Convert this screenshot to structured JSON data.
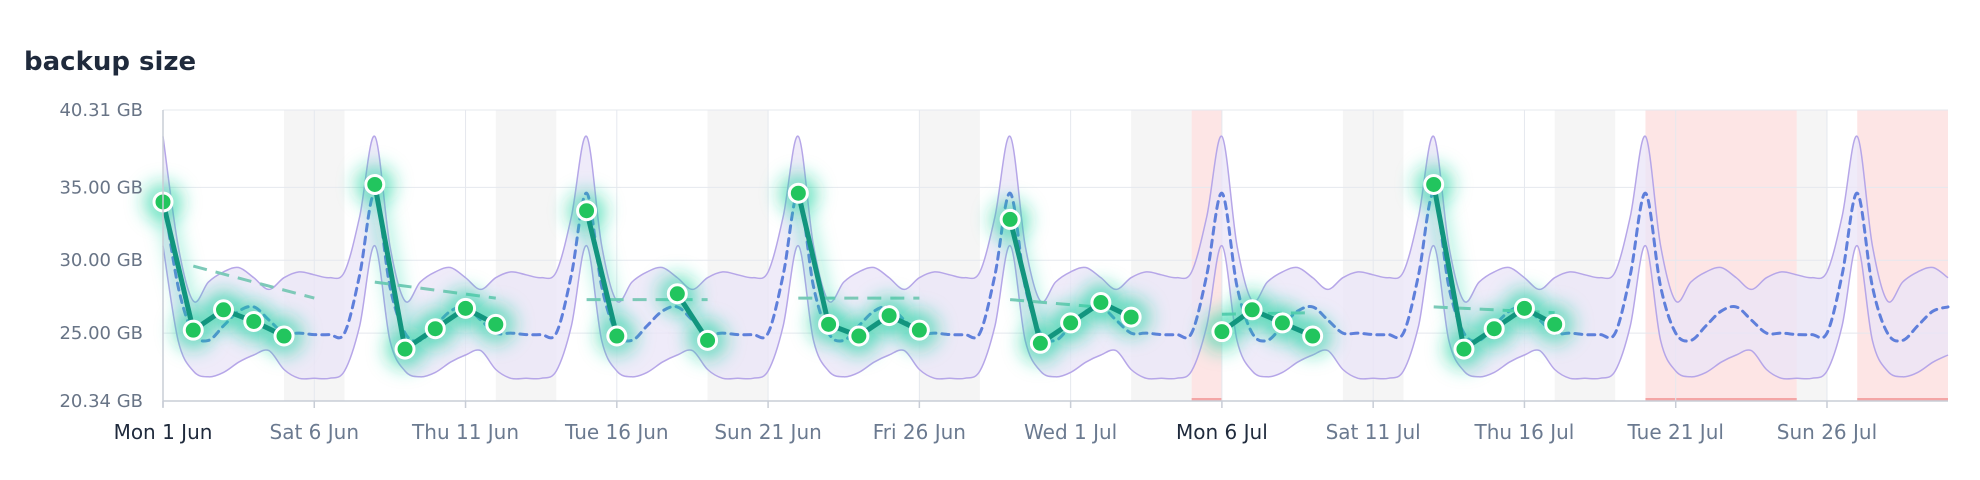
{
  "panel": {
    "title": "backup size"
  },
  "colors": {
    "actual": "#12957e",
    "point_fill": "#22c55e",
    "glow": "#1cd3a0",
    "expected": "#5f7fdb",
    "band_fill": "#e9e4f7",
    "band_stroke": "#b6a6e8",
    "trend": "#7ec9b8",
    "anomaly": "#fde5e5",
    "anomaly_edge": "#f4a5a5",
    "weekend": "#f5f5f5",
    "grid": "#e5e8ee"
  },
  "chart_data": {
    "type": "line",
    "title": "backup size",
    "xlabel": "",
    "ylabel": "",
    "ylim": [
      20.34,
      40.31
    ],
    "xlim": [
      "2025-06-01",
      "2025-07-30"
    ],
    "yticks": [
      "40.31 GB",
      "35.00 GB",
      "30.00 GB",
      "25.00 GB",
      "20.34 GB"
    ],
    "ytick_values": [
      40.31,
      35.0,
      30.0,
      25.0,
      20.34
    ],
    "xticks": [
      {
        "label": "Mon 1 Jun",
        "date": "2025-06-01",
        "major": true
      },
      {
        "label": "Sat 6 Jun",
        "date": "2025-06-06",
        "major": false
      },
      {
        "label": "Thu 11 Jun",
        "date": "2025-06-11",
        "major": false
      },
      {
        "label": "Tue 16 Jun",
        "date": "2025-06-16",
        "major": false
      },
      {
        "label": "Sun 21 Jun",
        "date": "2025-06-21",
        "major": false
      },
      {
        "label": "Fri 26 Jun",
        "date": "2025-06-26",
        "major": false
      },
      {
        "label": "Wed 1 Jul",
        "date": "2025-07-01",
        "major": false
      },
      {
        "label": "Mon 6 Jul",
        "date": "2025-07-06",
        "major": true
      },
      {
        "label": "Sat 11 Jul",
        "date": "2025-07-11",
        "major": false
      },
      {
        "label": "Thu 16 Jul",
        "date": "2025-07-16",
        "major": false
      },
      {
        "label": "Tue 21 Jul",
        "date": "2025-07-21",
        "major": false
      },
      {
        "label": "Sun 26 Jul",
        "date": "2025-07-26",
        "major": false
      }
    ],
    "weekends": [
      [
        "2025-06-05",
        "2025-06-07"
      ],
      [
        "2025-06-12",
        "2025-06-14"
      ],
      [
        "2025-06-19",
        "2025-06-21"
      ],
      [
        "2025-06-26",
        "2025-06-28"
      ],
      [
        "2025-07-03",
        "2025-07-05"
      ],
      [
        "2025-07-10",
        "2025-07-12"
      ],
      [
        "2025-07-17",
        "2025-07-19"
      ],
      [
        "2025-07-24",
        "2025-07-26"
      ]
    ],
    "anomalies": [
      [
        "2025-07-05",
        "2025-07-06"
      ],
      [
        "2025-07-20",
        "2025-07-25"
      ],
      [
        "2025-07-27",
        "2025-07-30"
      ]
    ],
    "cycle_start_dates": [
      "2025-06-01",
      "2025-06-08",
      "2025-06-15",
      "2025-06-22",
      "2025-06-29",
      "2025-07-06",
      "2025-07-13",
      "2025-07-20",
      "2025-07-27"
    ],
    "expected_cycle": {
      "offsets": [
        0,
        0.5,
        1,
        1.5,
        2,
        2.5,
        3,
        3.5,
        4,
        4.5,
        5,
        5.5,
        6,
        6.5,
        7
      ],
      "mid": [
        34.6,
        28.2,
        25.0,
        24.5,
        25.5,
        26.5,
        26.8,
        25.9,
        25.0,
        25.0,
        24.9,
        24.9,
        25.0,
        29.0,
        34.6
      ],
      "upper": [
        38.5,
        31.0,
        27.2,
        28.5,
        29.2,
        29.5,
        28.8,
        28.0,
        28.8,
        29.2,
        29.0,
        28.8,
        29.2,
        33.0,
        38.5
      ],
      "lower": [
        31.0,
        24.5,
        22.4,
        22.0,
        22.3,
        23.0,
        23.5,
        23.8,
        22.5,
        21.9,
        21.9,
        21.9,
        22.4,
        25.5,
        31.0
      ]
    },
    "series": [
      {
        "name": "actual",
        "segments": [
          [
            [
              "2025-06-01",
              34.0
            ],
            [
              "2025-06-02",
              25.2
            ],
            [
              "2025-06-03",
              26.6
            ],
            [
              "2025-06-04",
              25.8
            ],
            [
              "2025-06-05",
              24.8
            ]
          ],
          [
            [
              "2025-06-08",
              35.2
            ],
            [
              "2025-06-09",
              23.9
            ],
            [
              "2025-06-10",
              25.3
            ],
            [
              "2025-06-11",
              26.7
            ],
            [
              "2025-06-12",
              25.6
            ]
          ],
          [
            [
              "2025-06-15",
              33.4
            ],
            [
              "2025-06-16",
              24.8
            ]
          ],
          [
            [
              "2025-06-18",
              27.7
            ],
            [
              "2025-06-19",
              24.5
            ]
          ],
          [
            [
              "2025-06-22",
              34.6
            ],
            [
              "2025-06-23",
              25.6
            ],
            [
              "2025-06-24",
              24.8
            ],
            [
              "2025-06-25",
              26.2
            ],
            [
              "2025-06-26",
              25.2
            ]
          ],
          [
            [
              "2025-06-29",
              32.8
            ],
            [
              "2025-06-30",
              24.3
            ],
            [
              "2025-07-01",
              25.7
            ],
            [
              "2025-07-02",
              27.1
            ],
            [
              "2025-07-03",
              26.1
            ]
          ],
          [
            [
              "2025-07-06",
              25.1
            ],
            [
              "2025-07-07",
              26.6
            ],
            [
              "2025-07-08",
              25.7
            ],
            [
              "2025-07-09",
              24.8
            ]
          ],
          [
            [
              "2025-07-13",
              35.2
            ],
            [
              "2025-07-14",
              23.9
            ],
            [
              "2025-07-15",
              25.3
            ],
            [
              "2025-07-16",
              26.7
            ],
            [
              "2025-07-17",
              25.6
            ]
          ]
        ]
      },
      {
        "name": "trend",
        "segments": [
          [
            [
              "2025-06-02",
              29.6
            ],
            [
              "2025-06-06",
              27.4
            ]
          ],
          [
            [
              "2025-06-08",
              28.5
            ],
            [
              "2025-06-12",
              27.4
            ]
          ],
          [
            [
              "2025-06-15",
              27.3
            ],
            [
              "2025-06-19",
              27.3
            ]
          ],
          [
            [
              "2025-06-22",
              27.4
            ],
            [
              "2025-06-26",
              27.4
            ]
          ],
          [
            [
              "2025-06-29",
              27.3
            ],
            [
              "2025-07-03",
              26.6
            ]
          ],
          [
            [
              "2025-07-06",
              26.3
            ],
            [
              "2025-07-09",
              26.4
            ]
          ],
          [
            [
              "2025-07-13",
              26.8
            ],
            [
              "2025-07-17",
              26.4
            ]
          ]
        ]
      }
    ]
  }
}
